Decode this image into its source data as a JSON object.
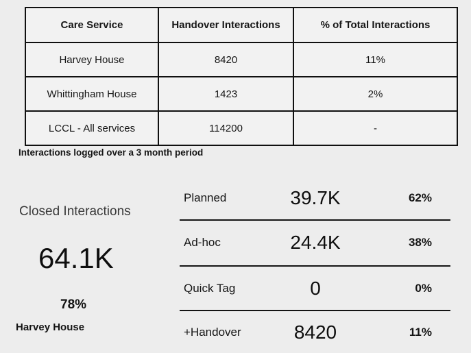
{
  "chart_data": [
    {
      "type": "table",
      "columns": [
        "Care Service",
        "Handover Interactions",
        "% of Total Interactions"
      ],
      "rows": [
        [
          "Harvey House",
          "8420",
          "11%"
        ],
        [
          "Whittingham House",
          "1423",
          "2%"
        ],
        [
          "LCCL - All services",
          "114200",
          "-"
        ]
      ],
      "footnote": "Interactions logged over a 3 month period"
    },
    {
      "type": "table",
      "title": "Closed Interactions",
      "value": "64.1K",
      "percent": "78%",
      "category": "Harvey House"
    },
    {
      "type": "table",
      "rows": [
        {
          "label": "Planned",
          "value": "39.7K",
          "percent": "62%"
        },
        {
          "label": "Ad-hoc",
          "value": "24.4K",
          "percent": "38%"
        },
        {
          "label": "Quick Tag",
          "value": "0",
          "percent": "0%"
        },
        {
          "label": "+Handover",
          "value": "8420",
          "percent": "11%"
        }
      ]
    }
  ],
  "colors": {
    "page_background": "#ededed",
    "cell_background": "#f2f2f2",
    "border": "#101010",
    "text": "#141414",
    "muted_title": "#3a3a3a"
  }
}
